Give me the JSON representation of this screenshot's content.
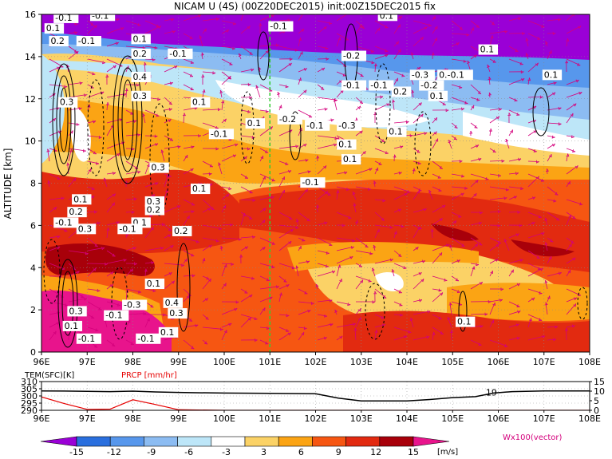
{
  "title": "NICAM U (4S) (00Z20DEC2015) init:00Z15DEC2015 fix",
  "chart_data": [
    {
      "type": "heatmap",
      "panel": "main",
      "variable": "U",
      "units": "[m/s]",
      "ylabel": "ALTITUDE [km]",
      "xlim": [
        96,
        108
      ],
      "ylim": [
        0,
        16
      ],
      "x_ticks": [
        96,
        97,
        98,
        99,
        100,
        101,
        102,
        103,
        104,
        105,
        106,
        107,
        108
      ],
      "x_tick_labels": [
        "96E",
        "97E",
        "98E",
        "99E",
        "100E",
        "101E",
        "102E",
        "103E",
        "104E",
        "105E",
        "106E",
        "107E",
        "108E"
      ],
      "y_ticks": [
        0,
        2,
        4,
        6,
        8,
        10,
        12,
        14,
        16
      ],
      "y_tick_labels": [
        "0",
        "2",
        "4",
        "6",
        "8",
        "10",
        "12",
        "14",
        "16"
      ],
      "reference_line_x": 101,
      "reference_line_color": "#33cc33",
      "vector_label": "Wx100(vector)",
      "vector_color": "#d4007c",
      "contour_labels": [
        {
          "x": 96.3,
          "y": 15.7,
          "text": "-0.1"
        },
        {
          "x": 97.1,
          "y": 15.8,
          "text": "-0.1"
        },
        {
          "x": 96.1,
          "y": 15.2,
          "text": "0.1"
        },
        {
          "x": 96.2,
          "y": 14.6,
          "text": "0.2"
        },
        {
          "x": 96.8,
          "y": 14.6,
          "text": "-0.1"
        },
        {
          "x": 98.0,
          "y": 14.7,
          "text": "0.1"
        },
        {
          "x": 98.0,
          "y": 14.0,
          "text": "0.2"
        },
        {
          "x": 98.8,
          "y": 14.0,
          "text": "-0.1"
        },
        {
          "x": 101.0,
          "y": 15.3,
          "text": "-0.1"
        },
        {
          "x": 102.6,
          "y": 13.9,
          "text": "-0.2"
        },
        {
          "x": 103.4,
          "y": 15.8,
          "text": "0.1"
        },
        {
          "x": 105.6,
          "y": 14.2,
          "text": "0.1"
        },
        {
          "x": 107.0,
          "y": 13.0,
          "text": "0.1"
        },
        {
          "x": 104.1,
          "y": 13.0,
          "text": "-0.3"
        },
        {
          "x": 104.7,
          "y": 13.0,
          "text": "0.-0.1"
        },
        {
          "x": 104.3,
          "y": 12.5,
          "text": "-0.2"
        },
        {
          "x": 103.7,
          "y": 12.2,
          "text": "0.2"
        },
        {
          "x": 104.5,
          "y": 12.0,
          "text": "0.1"
        },
        {
          "x": 102.6,
          "y": 12.5,
          "text": "-0.1"
        },
        {
          "x": 103.2,
          "y": 12.5,
          "text": "-0.1"
        },
        {
          "x": 96.4,
          "y": 11.7,
          "text": "0.3"
        },
        {
          "x": 98.0,
          "y": 12.0,
          "text": "0.3"
        },
        {
          "x": 98.0,
          "y": 12.9,
          "text": "0.4"
        },
        {
          "x": 99.3,
          "y": 11.7,
          "text": "0.1"
        },
        {
          "x": 100.5,
          "y": 10.7,
          "text": "0.1"
        },
        {
          "x": 101.2,
          "y": 10.9,
          "text": "-0.2"
        },
        {
          "x": 101.8,
          "y": 10.6,
          "text": "-0.1"
        },
        {
          "x": 102.5,
          "y": 10.6,
          "text": "-0.3"
        },
        {
          "x": 103.6,
          "y": 10.3,
          "text": "0.1"
        },
        {
          "x": 99.7,
          "y": 10.2,
          "text": "-0.1"
        },
        {
          "x": 102.5,
          "y": 9.7,
          "text": "0.1"
        },
        {
          "x": 102.6,
          "y": 9.0,
          "text": "0.1"
        },
        {
          "x": 98.4,
          "y": 8.6,
          "text": "0.3"
        },
        {
          "x": 101.7,
          "y": 7.9,
          "text": "-0.1"
        },
        {
          "x": 99.3,
          "y": 7.6,
          "text": "0.1"
        },
        {
          "x": 96.7,
          "y": 7.1,
          "text": "0.1"
        },
        {
          "x": 98.3,
          "y": 7.0,
          "text": "0.3"
        },
        {
          "x": 98.3,
          "y": 6.6,
          "text": "0.2"
        },
        {
          "x": 96.6,
          "y": 6.5,
          "text": "0.2"
        },
        {
          "x": 96.3,
          "y": 6.0,
          "text": "-0.1"
        },
        {
          "x": 98.0,
          "y": 6.0,
          "text": "0.1"
        },
        {
          "x": 96.8,
          "y": 5.7,
          "text": "0.3"
        },
        {
          "x": 97.7,
          "y": 5.7,
          "text": "-0.1"
        },
        {
          "x": 98.9,
          "y": 5.6,
          "text": "0.2"
        },
        {
          "x": 98.3,
          "y": 3.1,
          "text": "0.1"
        },
        {
          "x": 98.7,
          "y": 2.2,
          "text": "0.4"
        },
        {
          "x": 97.8,
          "y": 2.1,
          "text": "-0.3"
        },
        {
          "x": 96.6,
          "y": 1.8,
          "text": "0.3"
        },
        {
          "x": 97.4,
          "y": 1.6,
          "text": "-0.1"
        },
        {
          "x": 98.8,
          "y": 1.7,
          "text": "0.3"
        },
        {
          "x": 96.5,
          "y": 1.1,
          "text": "0.1"
        },
        {
          "x": 98.6,
          "y": 0.8,
          "text": "0.1"
        },
        {
          "x": 96.8,
          "y": 0.5,
          "text": "-0.1"
        },
        {
          "x": 98.1,
          "y": 0.5,
          "text": "-0.1"
        },
        {
          "x": 105.1,
          "y": 1.3,
          "text": "0.1"
        }
      ]
    },
    {
      "type": "line",
      "panel": "surface",
      "x": [
        96,
        96.5,
        97,
        97.5,
        98,
        98.5,
        99,
        100,
        101,
        102,
        102.5,
        103,
        103.5,
        104,
        104.5,
        105,
        105.5,
        105.9,
        106.3,
        107,
        108
      ],
      "xlim": [
        96,
        108
      ],
      "series": [
        {
          "name": "TEM(SFC)[K]",
          "axis": "left",
          "color": "#000000",
          "values": [
            303.5,
            303.4,
            303.2,
            303.0,
            303.3,
            302.8,
            302.4,
            302.0,
            301.8,
            301.5,
            298.5,
            296.5,
            296.5,
            296.5,
            297.5,
            298.8,
            299.5,
            302.0,
            303.0,
            303.5,
            303.5
          ]
        },
        {
          "name": "PRCP [mm/hr]",
          "axis": "right",
          "color": "#e60000",
          "values": [
            7,
            3.5,
            0.5,
            0.6,
            5.5,
            3,
            0.3,
            0,
            0,
            0,
            0,
            0,
            0,
            0,
            0,
            0,
            0,
            0,
            0,
            0,
            0
          ]
        }
      ],
      "y_left_lim": [
        290,
        310
      ],
      "y_left_ticks": [
        290,
        295,
        300,
        305,
        310
      ],
      "y_left_tick_labels": [
        "290",
        "295",
        "300",
        "305",
        "310"
      ],
      "y_right_lim": [
        0,
        15
      ],
      "y_right_ticks": [
        0,
        5,
        10,
        15
      ],
      "y_right_tick_labels": [
        "0",
        "5",
        "10",
        "15"
      ],
      "contour_label": {
        "x": 105.85,
        "y": 302.5,
        "text": "19"
      },
      "x_tick_labels": [
        "96E",
        "97E",
        "98E",
        "99E",
        "100E",
        "101E",
        "102E",
        "103E",
        "104E",
        "105E",
        "106E",
        "107E",
        "108E"
      ]
    }
  ],
  "colorbar": {
    "levels": [
      -15,
      -12,
      -9,
      -6,
      -3,
      3,
      6,
      9,
      12,
      15
    ],
    "level_labels": [
      "-15",
      "-12",
      "-9",
      "-6",
      "-3",
      "3",
      "6",
      "9",
      "12",
      "15"
    ],
    "colors": [
      "#9a00d6",
      "#2a6fde",
      "#5797ec",
      "#8cbcf2",
      "#bde6f8",
      "#ffffff",
      "#fbd266",
      "#fba414",
      "#f65612",
      "#e22a10",
      "#a8000a",
      "#e8148c"
    ],
    "units_label": "[m/s]"
  },
  "palette": {
    "purple": "#9a00d6",
    "blue": "#2a6fde",
    "mid_blue": "#5797ec",
    "light_blue": "#8cbcf2",
    "pale_blue": "#bde6f8",
    "white": "#ffffff",
    "yellow": "#fbd266",
    "orange": "#fba414",
    "red_orange": "#f65612",
    "red": "#e22a10",
    "dark_red": "#a8000a",
    "magenta": "#e8148c"
  }
}
